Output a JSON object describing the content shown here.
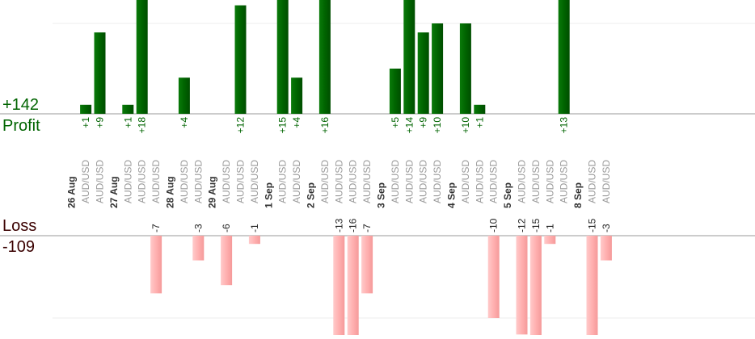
{
  "labels": {
    "profit_total": "+142",
    "profit_caption": "Profit",
    "loss_caption": "Loss",
    "loss_total": "-109"
  },
  "colors": {
    "profit_bar": "#006400",
    "loss_bar": "#ffb0b0",
    "profit_text": "#006400",
    "loss_text": "#222222",
    "pair_text": "#999999",
    "date_text": "#333333",
    "axis": "#999999",
    "grid": "#eeeeee"
  },
  "chart_data": {
    "type": "bar",
    "profit_scale_max": 10,
    "loss_scale_max": 10,
    "dates": [
      "26 Aug",
      "27 Aug",
      "28 Aug",
      "29 Aug",
      "1 Sep",
      "2 Sep",
      "3 Sep",
      "4 Sep",
      "5 Sep",
      "8 Sep"
    ],
    "trades": [
      {
        "pair": "AUD/USD",
        "profit": 1
      },
      {
        "pair": "AUD/USD",
        "profit": 9
      },
      {
        "pair": "AUD/USD",
        "profit": 1
      },
      {
        "pair": "AUD/USD",
        "profit": 18
      },
      {
        "pair": "AUD/USD",
        "loss": -7
      },
      {
        "pair": "AUD/USD",
        "profit": 4
      },
      {
        "pair": "AUD/USD",
        "loss": -3
      },
      {
        "pair": "AUD/USD",
        "loss": -6
      },
      {
        "pair": "AUD/USD",
        "profit": 12
      },
      {
        "pair": "AUD/USD",
        "loss": -1
      },
      {
        "pair": "AUD/USD",
        "profit": 15
      },
      {
        "pair": "AUD/USD",
        "profit": 4
      },
      {
        "pair": "AUD/USD",
        "profit": 16
      },
      {
        "pair": "AUD/USD",
        "loss": -13
      },
      {
        "pair": "AUD/USD",
        "loss": -16
      },
      {
        "pair": "AUD/USD",
        "loss": -7
      },
      {
        "pair": "AUD/USD",
        "profit": 5
      },
      {
        "pair": "AUD/USD",
        "profit": 14
      },
      {
        "pair": "AUD/USD",
        "profit": 9
      },
      {
        "pair": "AUD/USD",
        "profit": 10
      },
      {
        "pair": "AUD/USD",
        "profit": 10
      },
      {
        "pair": "AUD/USD",
        "profit": 1
      },
      {
        "pair": "AUD/USD",
        "loss": -10
      },
      {
        "pair": "AUD/USD",
        "loss": -12
      },
      {
        "pair": "AUD/USD",
        "loss": -15
      },
      {
        "pair": "AUD/USD",
        "loss": -1
      },
      {
        "pair": "AUD/USD",
        "profit": 13
      },
      {
        "pair": "AUD/USD",
        "loss": -15
      },
      {
        "pair": "AUD/USD",
        "loss": -3
      }
    ]
  }
}
